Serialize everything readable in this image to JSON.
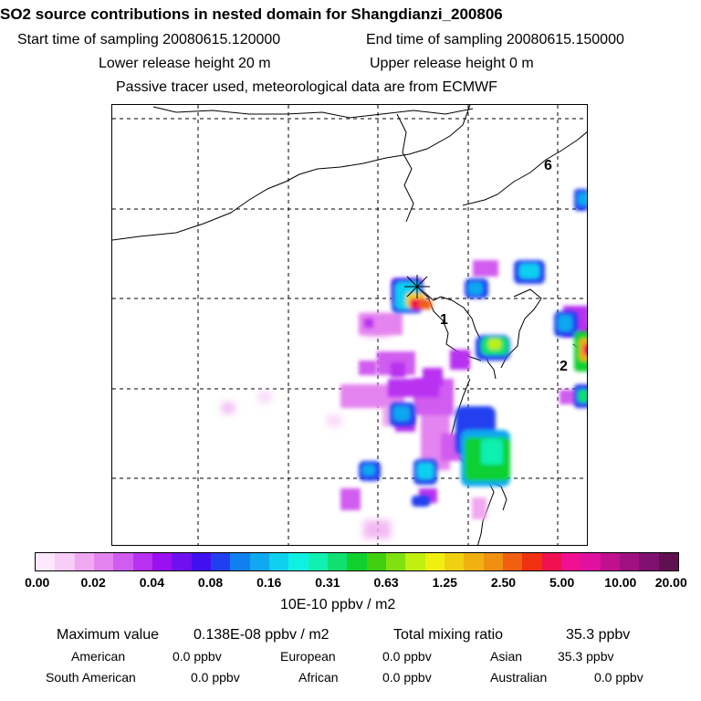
{
  "title": "SO2 source contributions in nested domain for Shangdianzi_200806",
  "header": {
    "start_sampling": "Start time of sampling 20080615.120000",
    "end_sampling": "End time of sampling 20080615.150000",
    "lower_release": "Lower release height   20 m",
    "upper_release": "Upper release height    0 m",
    "tracer_note": "Passive tracer used, meteorological data are from ECMWF"
  },
  "map": {
    "region_labels": [
      "6",
      "1",
      "2"
    ],
    "station_marker": "asterisk-icon"
  },
  "color_scale": {
    "colors": [
      "#fde8fd",
      "#f8cdf8",
      "#f0a8f0",
      "#e484f0",
      "#d05cf0",
      "#b830f0",
      "#9a10f0",
      "#7010f0",
      "#4010f0",
      "#2040f0",
      "#1080f0",
      "#10a8f0",
      "#10d0f0",
      "#10f0e0",
      "#10f0b0",
      "#10e070",
      "#10d030",
      "#40d010",
      "#80e010",
      "#c0f010",
      "#f0f010",
      "#f0d010",
      "#f0b010",
      "#f09010",
      "#f06010",
      "#f03010",
      "#f01050",
      "#f01090",
      "#e010a0",
      "#c01090",
      "#a01080",
      "#801070",
      "#601050"
    ],
    "tick_labels": [
      "0.00",
      "0.02",
      "0.04",
      "0.08",
      "0.16",
      "0.31",
      "0.63",
      "1.25",
      "2.50",
      "5.00",
      "10.00",
      "20.00"
    ],
    "unit": "10E-10 ppbv / m2"
  },
  "stats": {
    "max_label": "Maximum value",
    "max_value": "0.138E-08 ppbv / m2",
    "total_label": "Total mixing ratio",
    "total_value": "35.3 ppbv",
    "regions": [
      {
        "name": "American",
        "value": "0.0 ppbv"
      },
      {
        "name": "European",
        "value": "0.0 ppbv"
      },
      {
        "name": "Asian",
        "value": "35.3 ppbv"
      },
      {
        "name": "South American",
        "value": "0.0 ppbv"
      },
      {
        "name": "African",
        "value": "0.0 ppbv"
      },
      {
        "name": "Australian",
        "value": "0.0 ppbv"
      }
    ]
  }
}
